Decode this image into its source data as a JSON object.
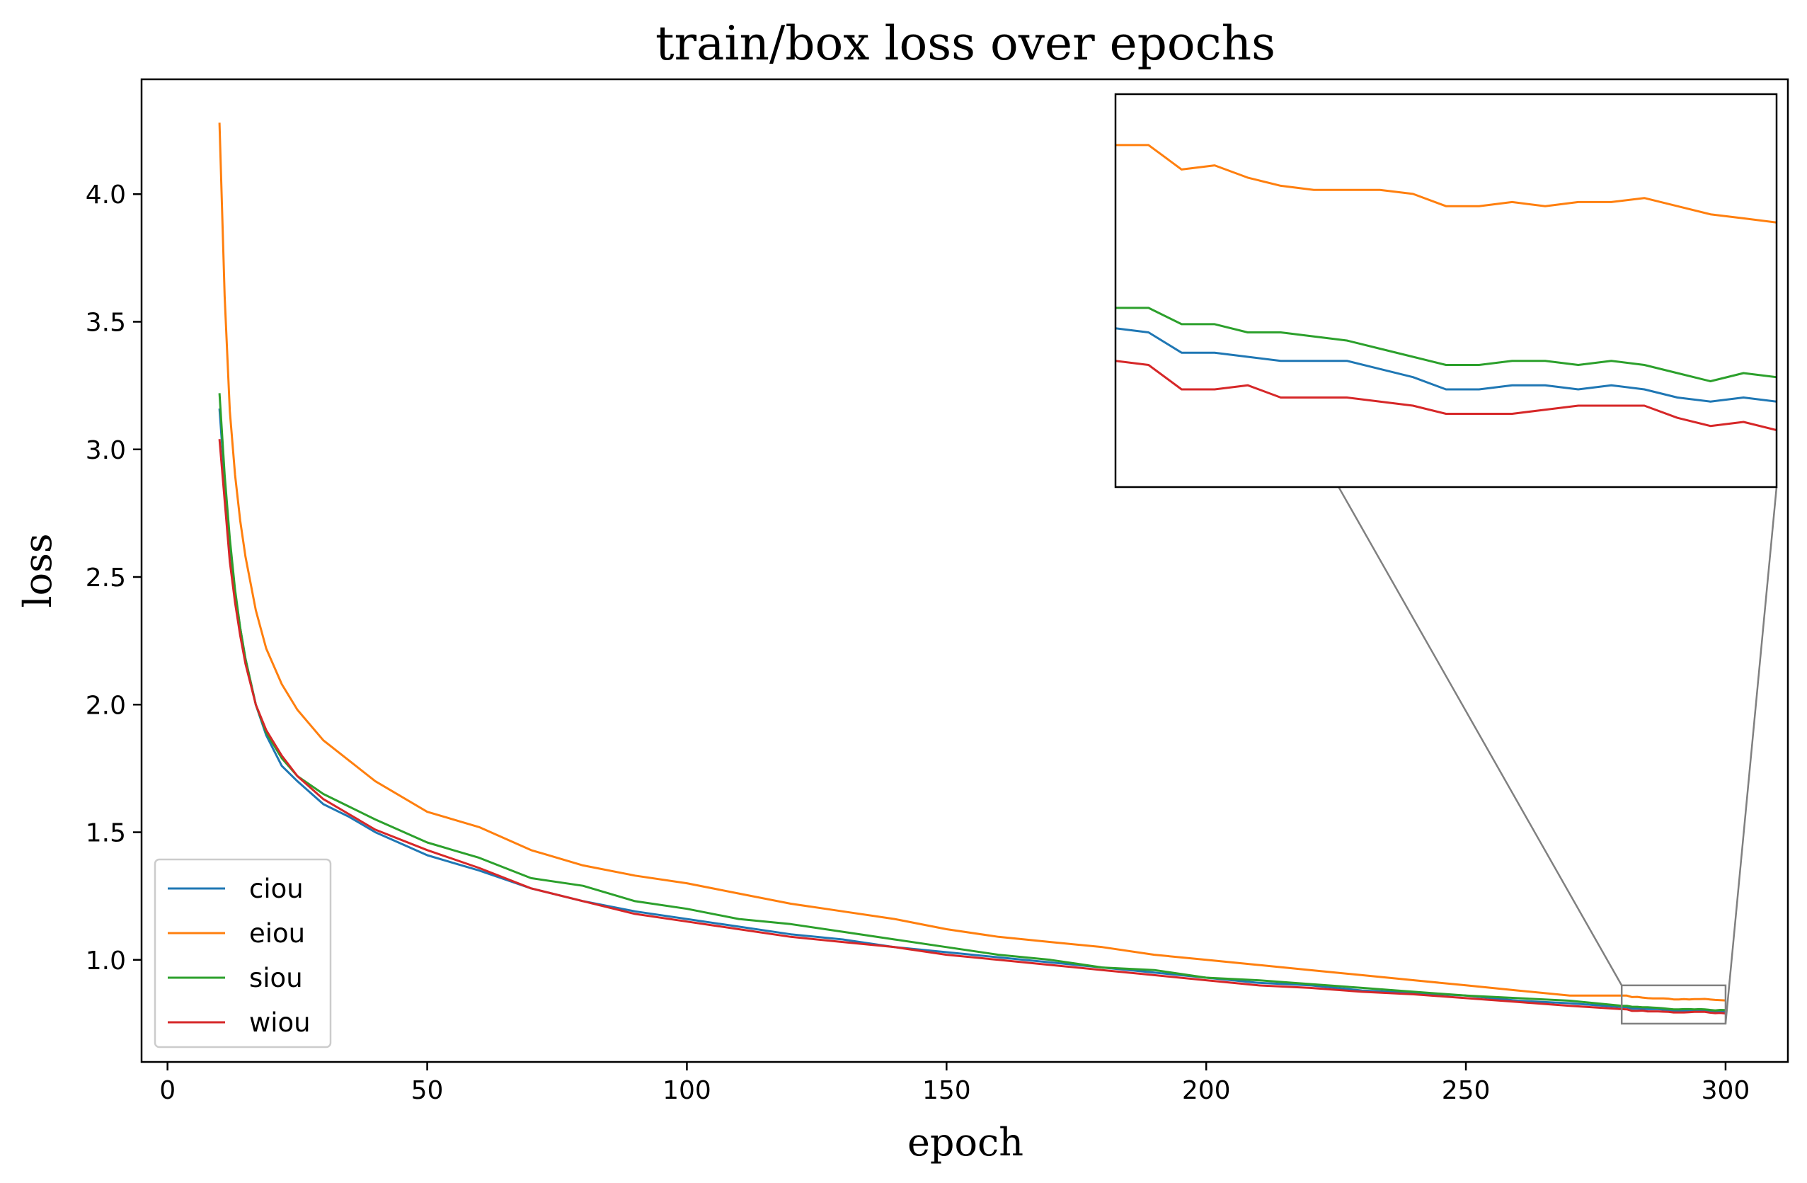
{
  "chart_data": {
    "type": "line",
    "title": "train/box loss over epochs",
    "xlabel": "epoch",
    "ylabel": "loss",
    "xlim": [
      -5,
      312
    ],
    "ylim": [
      0.6,
      4.45
    ],
    "xticks": [
      0,
      50,
      100,
      150,
      200,
      250,
      300
    ],
    "yticks": [
      1.0,
      1.5,
      2.0,
      2.5,
      3.0,
      3.5,
      4.0
    ],
    "xtick_labels": [
      "0",
      "50",
      "100",
      "150",
      "200",
      "250",
      "300"
    ],
    "ytick_labels": [
      "1.0",
      "1.5",
      "2.0",
      "2.5",
      "3.0",
      "3.5",
      "4.0"
    ],
    "grid": false,
    "legend_position": "lower-left",
    "x": [
      10,
      11,
      12,
      13,
      14,
      15,
      17,
      19,
      22,
      25,
      30,
      35,
      40,
      50,
      60,
      70,
      80,
      90,
      100,
      110,
      120,
      130,
      140,
      150,
      160,
      170,
      180,
      190,
      200,
      210,
      220,
      230,
      240,
      250,
      260,
      270,
      280,
      281,
      282,
      283,
      284,
      285,
      286,
      287,
      288,
      289,
      290,
      291,
      292,
      293,
      294,
      295,
      296,
      297,
      298,
      299,
      300
    ],
    "series": [
      {
        "name": "ciou",
        "color": "#1f77b4",
        "values": [
          3.16,
          2.88,
          2.63,
          2.44,
          2.3,
          2.18,
          2.0,
          1.88,
          1.76,
          1.7,
          1.61,
          1.56,
          1.5,
          1.41,
          1.35,
          1.28,
          1.23,
          1.19,
          1.16,
          1.13,
          1.1,
          1.08,
          1.05,
          1.03,
          1.01,
          0.99,
          0.97,
          0.95,
          0.93,
          0.91,
          0.9,
          0.88,
          0.87,
          0.86,
          0.84,
          0.83,
          0.815,
          0.814,
          0.809,
          0.809,
          0.808,
          0.807,
          0.807,
          0.807,
          0.805,
          0.803,
          0.8,
          0.8,
          0.801,
          0.801,
          0.8,
          0.801,
          0.8,
          0.798,
          0.797,
          0.798,
          0.797
        ]
      },
      {
        "name": "eiou",
        "color": "#ff7f0e",
        "values": [
          4.28,
          3.6,
          3.15,
          2.9,
          2.72,
          2.58,
          2.37,
          2.22,
          2.08,
          1.98,
          1.86,
          1.78,
          1.7,
          1.58,
          1.52,
          1.43,
          1.37,
          1.33,
          1.3,
          1.26,
          1.22,
          1.19,
          1.16,
          1.12,
          1.09,
          1.07,
          1.05,
          1.02,
          1.0,
          0.98,
          0.96,
          0.94,
          0.92,
          0.9,
          0.88,
          0.86,
          0.86,
          0.86,
          0.854,
          0.855,
          0.852,
          0.85,
          0.849,
          0.849,
          0.849,
          0.848,
          0.845,
          0.845,
          0.846,
          0.845,
          0.846,
          0.846,
          0.847,
          0.845,
          0.843,
          0.842,
          0.841
        ]
      },
      {
        "name": "siou",
        "color": "#2ca02c",
        "values": [
          3.22,
          2.9,
          2.65,
          2.45,
          2.3,
          2.18,
          2.0,
          1.89,
          1.79,
          1.72,
          1.65,
          1.6,
          1.55,
          1.46,
          1.4,
          1.32,
          1.29,
          1.23,
          1.2,
          1.16,
          1.14,
          1.11,
          1.08,
          1.05,
          1.02,
          1.0,
          0.97,
          0.96,
          0.93,
          0.92,
          0.905,
          0.89,
          0.875,
          0.86,
          0.85,
          0.84,
          0.82,
          0.82,
          0.816,
          0.816,
          0.814,
          0.814,
          0.813,
          0.812,
          0.81,
          0.808,
          0.806,
          0.806,
          0.807,
          0.807,
          0.806,
          0.807,
          0.806,
          0.804,
          0.802,
          0.804,
          0.803
        ]
      },
      {
        "name": "wiou",
        "color": "#d62728",
        "values": [
          3.04,
          2.8,
          2.56,
          2.4,
          2.27,
          2.16,
          2.0,
          1.9,
          1.8,
          1.72,
          1.63,
          1.57,
          1.51,
          1.43,
          1.36,
          1.28,
          1.23,
          1.18,
          1.15,
          1.12,
          1.09,
          1.07,
          1.05,
          1.02,
          1.0,
          0.98,
          0.96,
          0.94,
          0.92,
          0.9,
          0.89,
          0.875,
          0.865,
          0.85,
          0.835,
          0.82,
          0.807,
          0.806,
          0.8,
          0.8,
          0.801,
          0.798,
          0.798,
          0.798,
          0.797,
          0.796,
          0.794,
          0.794,
          0.794,
          0.795,
          0.796,
          0.796,
          0.796,
          0.793,
          0.791,
          0.792,
          0.79
        ]
      }
    ],
    "inset": {
      "xlim": [
        280,
        300
      ],
      "ylim": [
        0.75,
        0.9
      ],
      "y_view": [
        0.776,
        0.8725
      ],
      "tick_labels": false
    }
  }
}
